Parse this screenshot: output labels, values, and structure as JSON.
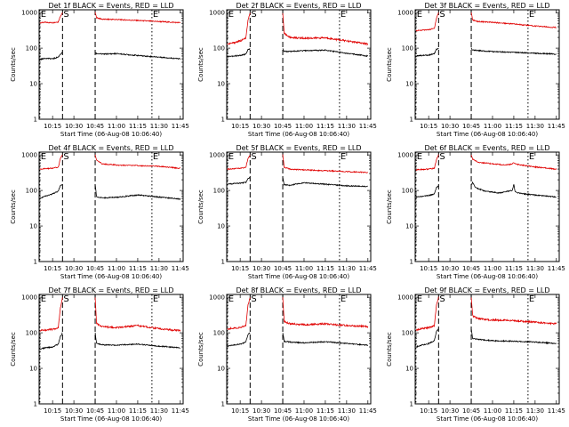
{
  "figure": {
    "xlabel": "Start Time (06-Aug-08 10:06:40)",
    "ylabel": "Counts/sec",
    "x_tick_labels": [
      "10:15",
      "10:30",
      "10:45",
      "11:00",
      "11:15",
      "11:30",
      "11:45"
    ],
    "y_tick_labels": [
      "1",
      "10",
      "100",
      "1000"
    ],
    "colors": {
      "events": "#000000",
      "lld": "#e00000",
      "markers": "#000000"
    }
  },
  "chart_data": [
    {
      "type": "line",
      "title": "Det 1f BLACK = Events, RED = LLD",
      "xlabel": "Start Time (06-Aug-08 10:06:40)",
      "ylabel": "Counts/sec",
      "x_unit": "minutes after 10:00",
      "xlim": [
        5.5,
        107
      ],
      "ylim": [
        1,
        1200
      ],
      "yscale": "log",
      "markers": [
        {
          "label": "E",
          "x": 6,
          "style": "dotted"
        },
        {
          "label": "S",
          "x": 22,
          "style": "dashed"
        },
        {
          "label": "",
          "x": 45,
          "style": "dashed"
        },
        {
          "label": "E",
          "x": 85,
          "style": "dotted"
        }
      ],
      "gaps": [
        [
          22,
          45
        ]
      ],
      "series": [
        {
          "name": "LLD",
          "color": "#e00000",
          "x": [
            6,
            10,
            15,
            19,
            20.5,
            22,
            45,
            46,
            50,
            60,
            75,
            90,
            105
          ],
          "y": [
            520,
            530,
            520,
            550,
            800,
            1000,
            1000,
            720,
            650,
            640,
            600,
            560,
            520
          ]
        },
        {
          "name": "Events",
          "color": "#000000",
          "x": [
            6,
            10,
            15,
            19,
            20.5,
            22,
            45,
            46,
            50,
            60,
            75,
            90,
            105
          ],
          "y": [
            48,
            52,
            50,
            56,
            68,
            75,
            75,
            70,
            68,
            70,
            62,
            56,
            50
          ]
        }
      ]
    },
    {
      "type": "line",
      "title": "Det 2f BLACK = Events, RED = LLD",
      "xlabel": "Start Time (06-Aug-08 10:06:40)",
      "ylabel": "Counts/sec",
      "x_unit": "minutes after 10:00",
      "xlim": [
        5.5,
        107
      ],
      "ylim": [
        1,
        1200
      ],
      "yscale": "log",
      "markers": [
        {
          "label": "E",
          "x": 6,
          "style": "dotted"
        },
        {
          "label": "S",
          "x": 22,
          "style": "dashed"
        },
        {
          "label": "",
          "x": 45,
          "style": "dashed"
        },
        {
          "label": "E",
          "x": 85,
          "style": "dotted"
        }
      ],
      "gaps": [
        [
          22,
          45
        ]
      ],
      "series": [
        {
          "name": "LLD",
          "color": "#e00000",
          "x": [
            6,
            10,
            15,
            19,
            20.5,
            22,
            45,
            46,
            50,
            60,
            75,
            90,
            105
          ],
          "y": [
            130,
            140,
            160,
            190,
            600,
            1000,
            1000,
            260,
            200,
            190,
            195,
            160,
            130
          ]
        },
        {
          "name": "Events",
          "color": "#000000",
          "x": [
            6,
            10,
            15,
            19,
            20.5,
            22,
            45,
            46,
            50,
            60,
            75,
            90,
            105
          ],
          "y": [
            58,
            60,
            62,
            68,
            90,
            95,
            95,
            82,
            80,
            85,
            88,
            72,
            60
          ]
        }
      ]
    },
    {
      "type": "line",
      "title": "Det 3f BLACK = Events, RED = LLD",
      "xlabel": "Start Time (06-Aug-08 10:06:40)",
      "ylabel": "Counts/sec",
      "x_unit": "minutes after 10:00",
      "xlim": [
        5.5,
        107
      ],
      "ylim": [
        1,
        1200
      ],
      "yscale": "log",
      "markers": [
        {
          "label": "E",
          "x": 6,
          "style": "dotted"
        },
        {
          "label": "S",
          "x": 22,
          "style": "dashed"
        },
        {
          "label": "",
          "x": 45,
          "style": "dashed"
        },
        {
          "label": "E",
          "x": 85,
          "style": "dotted"
        }
      ],
      "gaps": [
        [
          22,
          45
        ]
      ],
      "series": [
        {
          "name": "LLD",
          "color": "#e00000",
          "x": [
            6,
            10,
            15,
            19,
            20.5,
            22,
            45,
            46,
            50,
            60,
            75,
            90,
            105
          ],
          "y": [
            310,
            320,
            330,
            360,
            700,
            1000,
            1000,
            620,
            560,
            530,
            480,
            420,
            380
          ]
        },
        {
          "name": "Events",
          "color": "#000000",
          "x": [
            6,
            10,
            15,
            19,
            20.5,
            22,
            45,
            46,
            50,
            60,
            75,
            90,
            105
          ],
          "y": [
            60,
            62,
            64,
            70,
            92,
            100,
            100,
            90,
            85,
            80,
            76,
            72,
            68
          ]
        }
      ]
    },
    {
      "type": "line",
      "title": "Det 4f BLACK = Events, RED = LLD",
      "xlabel": "Start Time (06-Aug-08 10:06:40)",
      "ylabel": "Counts/sec",
      "x_unit": "minutes after 10:00",
      "xlim": [
        5.5,
        107
      ],
      "ylim": [
        1,
        1200
      ],
      "yscale": "log",
      "markers": [
        {
          "label": "E",
          "x": 6,
          "style": "dotted"
        },
        {
          "label": "S",
          "x": 22,
          "style": "dashed"
        },
        {
          "label": "",
          "x": 45,
          "style": "dashed"
        },
        {
          "label": "E",
          "x": 85,
          "style": "dotted"
        }
      ],
      "gaps": [
        [
          22,
          45
        ]
      ],
      "series": [
        {
          "name": "LLD",
          "color": "#e00000",
          "x": [
            6,
            10,
            15,
            19,
            20.5,
            22,
            45,
            46,
            50,
            60,
            75,
            90,
            105
          ],
          "y": [
            400,
            410,
            420,
            450,
            800,
            1000,
            1000,
            700,
            560,
            520,
            500,
            480,
            420
          ]
        },
        {
          "name": "Events",
          "color": "#000000",
          "x": [
            6,
            10,
            15,
            19,
            20.5,
            22,
            45,
            46,
            50,
            60,
            75,
            90,
            105
          ],
          "y": [
            60,
            70,
            80,
            95,
            140,
            150,
            150,
            65,
            62,
            64,
            75,
            65,
            58
          ]
        }
      ]
    },
    {
      "type": "line",
      "title": "Det 5f BLACK = Events, RED = LLD",
      "xlabel": "Start Time (06-Aug-08 10:06:40)",
      "ylabel": "Counts/sec",
      "x_unit": "minutes after 10:00",
      "xlim": [
        5.5,
        107
      ],
      "ylim": [
        1,
        1200
      ],
      "yscale": "log",
      "markers": [
        {
          "label": "E",
          "x": 6,
          "style": "dotted"
        },
        {
          "label": "S",
          "x": 22,
          "style": "dashed"
        },
        {
          "label": "",
          "x": 45,
          "style": "dashed"
        },
        {
          "label": "E",
          "x": 85,
          "style": "dotted"
        }
      ],
      "gaps": [
        [
          22,
          45
        ]
      ],
      "series": [
        {
          "name": "LLD",
          "color": "#e00000",
          "x": [
            6,
            10,
            15,
            19,
            20.5,
            22,
            45,
            46,
            50,
            60,
            75,
            90,
            105
          ],
          "y": [
            400,
            410,
            420,
            440,
            800,
            1000,
            1000,
            450,
            400,
            380,
            360,
            340,
            320
          ]
        },
        {
          "name": "Events",
          "color": "#000000",
          "x": [
            6,
            10,
            15,
            19,
            20.5,
            22,
            45,
            46,
            50,
            60,
            75,
            90,
            105
          ],
          "y": [
            150,
            155,
            160,
            170,
            210,
            240,
            240,
            145,
            140,
            165,
            150,
            135,
            130
          ]
        }
      ]
    },
    {
      "type": "line",
      "title": "Det 6f BLACK = Events, RED = LLD",
      "xlabel": "Start Time (06-Aug-08 10:06:40)",
      "ylabel": "Counts/sec",
      "x_unit": "minutes after 10:00",
      "xlim": [
        5.5,
        107
      ],
      "ylim": [
        1,
        1200
      ],
      "yscale": "log",
      "markers": [
        {
          "label": "E",
          "x": 6,
          "style": "dotted"
        },
        {
          "label": "S",
          "x": 22,
          "style": "dashed"
        },
        {
          "label": "",
          "x": 45,
          "style": "dashed"
        },
        {
          "label": "E",
          "x": 85,
          "style": "dotted"
        }
      ],
      "gaps": [
        [
          22,
          45
        ]
      ],
      "series": [
        {
          "name": "LLD",
          "color": "#e00000",
          "x": [
            6,
            10,
            15,
            19,
            20.5,
            22,
            45,
            46,
            50,
            60,
            70,
            74,
            75,
            76,
            80,
            90,
            105
          ],
          "y": [
            380,
            390,
            400,
            420,
            750,
            1000,
            1000,
            760,
            620,
            560,
            520,
            560,
            620,
            560,
            520,
            460,
            400
          ]
        },
        {
          "name": "Events",
          "color": "#000000",
          "x": [
            6,
            10,
            15,
            19,
            20.5,
            22,
            45,
            46,
            48,
            55,
            65,
            74,
            75,
            76,
            80,
            90,
            105
          ],
          "y": [
            65,
            68,
            72,
            80,
            120,
            140,
            140,
            170,
            120,
            95,
            85,
            100,
            150,
            90,
            82,
            74,
            66
          ]
        }
      ]
    },
    {
      "type": "line",
      "title": "Det 7f BLACK = Events, RED = LLD",
      "xlabel": "Start Time (06-Aug-08 10:06:40)",
      "ylabel": "Counts/sec",
      "x_unit": "minutes after 10:00",
      "xlim": [
        5.5,
        107
      ],
      "ylim": [
        1,
        1200
      ],
      "yscale": "log",
      "markers": [
        {
          "label": "E",
          "x": 6,
          "style": "dotted"
        },
        {
          "label": "S",
          "x": 22,
          "style": "dashed"
        },
        {
          "label": "",
          "x": 45,
          "style": "dashed"
        },
        {
          "label": "E",
          "x": 85,
          "style": "dotted"
        }
      ],
      "gaps": [
        [
          22,
          45
        ]
      ],
      "series": [
        {
          "name": "LLD",
          "color": "#e00000",
          "x": [
            6,
            10,
            15,
            19,
            20.5,
            22,
            45,
            46,
            50,
            60,
            75,
            90,
            105
          ],
          "y": [
            115,
            120,
            125,
            140,
            500,
            1000,
            1000,
            180,
            150,
            140,
            160,
            130,
            115
          ]
        },
        {
          "name": "Events",
          "color": "#000000",
          "x": [
            6,
            10,
            15,
            19,
            20.5,
            22,
            45,
            46,
            50,
            60,
            75,
            90,
            105
          ],
          "y": [
            35,
            38,
            40,
            48,
            80,
            100,
            100,
            50,
            46,
            45,
            48,
            42,
            38
          ]
        }
      ]
    },
    {
      "type": "line",
      "title": "Det 8f BLACK = Events, RED = LLD",
      "xlabel": "Start Time (06-Aug-08 10:06:40)",
      "ylabel": "Counts/sec",
      "x_unit": "minutes after 10:00",
      "xlim": [
        5.5,
        107
      ],
      "ylim": [
        1,
        1200
      ],
      "yscale": "log",
      "markers": [
        {
          "label": "E",
          "x": 6,
          "style": "dotted"
        },
        {
          "label": "S",
          "x": 22,
          "style": "dashed"
        },
        {
          "label": "",
          "x": 45,
          "style": "dashed"
        },
        {
          "label": "E",
          "x": 85,
          "style": "dotted"
        }
      ],
      "gaps": [
        [
          22,
          45
        ]
      ],
      "series": [
        {
          "name": "LLD",
          "color": "#e00000",
          "x": [
            6,
            10,
            15,
            19,
            20.5,
            22,
            45,
            46,
            50,
            60,
            75,
            90,
            105
          ],
          "y": [
            130,
            135,
            140,
            160,
            600,
            1000,
            1000,
            210,
            180,
            170,
            180,
            160,
            150
          ]
        },
        {
          "name": "Events",
          "color": "#000000",
          "x": [
            6,
            10,
            15,
            19,
            20.5,
            22,
            45,
            46,
            50,
            60,
            75,
            90,
            105
          ],
          "y": [
            42,
            45,
            48,
            55,
            90,
            100,
            100,
            58,
            55,
            52,
            56,
            50,
            45
          ]
        }
      ]
    },
    {
      "type": "line",
      "title": "Det 9f BLACK = Events, RED = LLD",
      "xlabel": "Start Time (06-Aug-08 10:06:40)",
      "ylabel": "Counts/sec",
      "x_unit": "minutes after 10:00",
      "xlim": [
        5.5,
        107
      ],
      "ylim": [
        1,
        1200
      ],
      "yscale": "log",
      "markers": [
        {
          "label": "E",
          "x": 6,
          "style": "dotted"
        },
        {
          "label": "S",
          "x": 22,
          "style": "dashed"
        },
        {
          "label": "",
          "x": 45,
          "style": "dashed"
        },
        {
          "label": "E",
          "x": 85,
          "style": "dotted"
        }
      ],
      "gaps": [
        [
          22,
          45
        ]
      ],
      "series": [
        {
          "name": "LLD",
          "color": "#e00000",
          "x": [
            6,
            10,
            15,
            19,
            20.5,
            22,
            45,
            46,
            50,
            60,
            75,
            90,
            105
          ],
          "y": [
            120,
            130,
            140,
            160,
            600,
            1000,
            1000,
            300,
            250,
            230,
            220,
            200,
            180
          ]
        },
        {
          "name": "Events",
          "color": "#000000",
          "x": [
            6,
            10,
            15,
            19,
            20.5,
            22,
            45,
            46,
            50,
            60,
            75,
            90,
            105
          ],
          "y": [
            40,
            45,
            50,
            60,
            110,
            130,
            130,
            70,
            65,
            60,
            58,
            55,
            50
          ]
        }
      ]
    }
  ]
}
